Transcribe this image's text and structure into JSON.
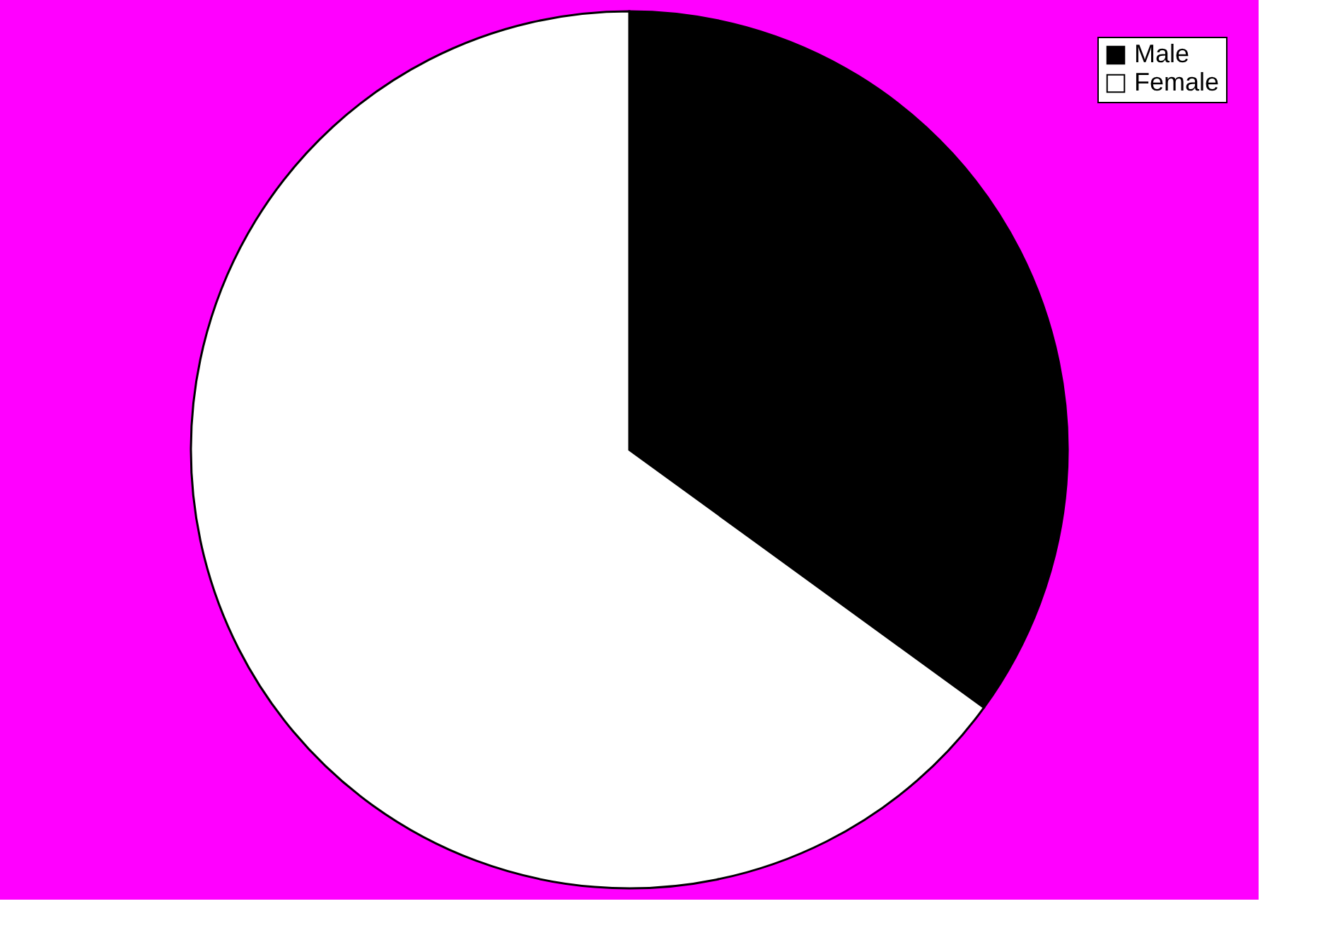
{
  "chart_data": {
    "type": "pie",
    "categories": [
      "Male",
      "Female"
    ],
    "values": [
      35,
      65
    ],
    "colors": [
      "#000000",
      "#ffffff"
    ],
    "legend": "top right"
  }
}
